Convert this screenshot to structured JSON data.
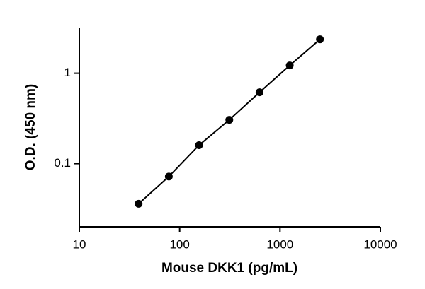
{
  "chart_data": {
    "type": "scatter",
    "x_label": "Mouse DKK1 (pg/mL)",
    "y_label": "O.D. (450 nm)",
    "x": [
      39,
      78,
      156,
      312.5,
      625,
      1250,
      2500
    ],
    "series": [
      {
        "color": "#000000",
        "values": [
          0.036,
          0.072,
          0.16,
          0.305,
          0.615,
          1.22,
          2.37
        ]
      }
    ],
    "x_log": true,
    "y_log": true,
    "xlim": [
      10,
      10000
    ],
    "xticks": [
      10,
      100,
      1000,
      10000
    ],
    "ylim": [
      0.02,
      3.2
    ],
    "yticks": [
      0.1,
      1
    ],
    "connect_points": true,
    "grid": false
  }
}
